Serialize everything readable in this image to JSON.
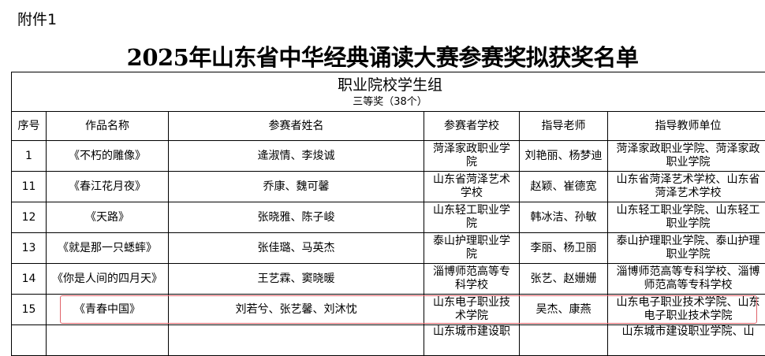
{
  "attachment_label": "附件1",
  "title": "2025年山东省中华经典诵读大赛参赛奖拟获奖名单",
  "group": {
    "name": "职业院校学生组",
    "award": "三等奖（38个）"
  },
  "columns": [
    "序号",
    "作品名称",
    "参赛者姓名",
    "参赛者学校",
    "指导老师",
    "指导教师单位"
  ],
  "rows": [
    {
      "no": "1",
      "work": "《不朽的雕像》",
      "participants": "逄淑情、李焌诚",
      "school": "菏泽家政职业学院",
      "teachers": "刘艳丽、杨梦迪",
      "unit": "菏泽家政职业学院、菏泽家政职业学院"
    },
    {
      "no": "11",
      "work": "《春江花月夜》",
      "participants": "乔康、魏可馨",
      "school": "山东省菏泽艺术学校",
      "teachers": "赵颖、崔德宽",
      "unit": "山东省菏泽艺术学校、山东省菏泽艺术学校"
    },
    {
      "no": "12",
      "work": "《天路》",
      "participants": "张晓雅、陈子峻",
      "school": "山东轻工职业学院",
      "teachers": "韩冰洁、孙敏",
      "unit": "山东轻工职业学院、山东轻工职业学院"
    },
    {
      "no": "13",
      "work": "《就是那一只蟋蟀》",
      "participants": "张佳璐、马英杰",
      "school": "泰山护理职业学院",
      "teachers": "李丽、杨卫丽",
      "unit": "泰山护理职业学院、泰山护理职业学院"
    },
    {
      "no": "14",
      "work": "《你是人间的四月天》",
      "participants": "王艺霖、窦晓暖",
      "school": "淄博师范高等专科学校",
      "teachers": "张艺、赵姗姗",
      "unit": "淄博师范高等专科学校、淄博师范高等专科学校"
    },
    {
      "no": "15",
      "work": "《青春中国》",
      "participants": "刘若兮、张艺馨、刘沐忱",
      "school": "山东电子职业技术学院",
      "teachers": "吴杰、康燕",
      "unit": "山东电子职业技术学院、山东电子职业技术学院",
      "highlighted": true
    },
    {
      "no": "",
      "work": "",
      "participants": "",
      "school": "山东城市建设职",
      "teachers": "",
      "unit": "山东城市建设职业学院、山"
    }
  ],
  "highlight_color": "#e0636a"
}
